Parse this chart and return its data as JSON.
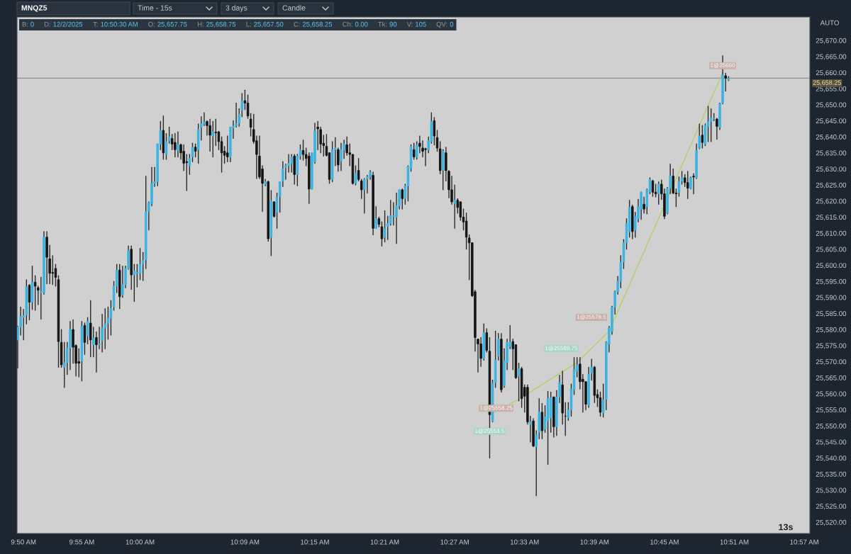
{
  "chart_data": {
    "type": "candlestick",
    "title": "MNQZ5",
    "x": [
      9.825,
      9.8292,
      9.8333,
      9.8375,
      9.8417,
      9.8458,
      9.85,
      9.8542,
      9.8583,
      9.8625,
      9.8667,
      9.8708,
      9.875,
      9.8792,
      9.8833,
      9.8875,
      9.8917,
      9.8958,
      9.9,
      9.9042,
      9.9083,
      9.9125,
      9.9167,
      9.9208,
      9.925,
      9.9292,
      9.9333,
      9.9375,
      9.9417,
      9.9458,
      9.95,
      9.9542,
      9.9583,
      9.9625,
      9.9667,
      9.9708,
      9.975,
      9.9792,
      9.9833,
      9.9875,
      9.9917,
      9.9958,
      10.0,
      10.0042,
      10.0083,
      10.0125,
      10.0167,
      10.0208,
      10.025,
      10.0292,
      10.0333,
      10.0375,
      10.0417,
      10.0458,
      10.05,
      10.0542,
      10.0583,
      10.0625,
      10.0667,
      10.0708,
      10.075,
      10.0792,
      10.0833,
      10.0875,
      10.0917,
      10.0958,
      10.1,
      10.1042,
      10.1083,
      10.1125,
      10.1167,
      10.1208,
      10.125,
      10.1292,
      10.1333,
      10.1375,
      10.1417,
      10.1458,
      10.15,
      10.1542,
      10.1583,
      10.1625,
      10.1667,
      10.1708,
      10.175,
      10.1792,
      10.1833,
      10.1875,
      10.1917,
      10.1958,
      10.2,
      10.2042,
      10.2083,
      10.2125,
      10.2167,
      10.2208,
      10.225,
      10.2292,
      10.2333,
      10.2375,
      10.2417,
      10.2458,
      10.25,
      10.2542,
      10.2583,
      10.2625,
      10.2667,
      10.2708,
      10.275,
      10.2792,
      10.2833,
      10.2875,
      10.2917,
      10.2958,
      10.3,
      10.3042,
      10.3083,
      10.3125,
      10.3167,
      10.3208,
      10.325,
      10.3292,
      10.3333,
      10.3375,
      10.3417,
      10.3458,
      10.35,
      10.3542,
      10.3583,
      10.3625,
      10.3667,
      10.3708,
      10.375,
      10.3792,
      10.3833,
      10.3875,
      10.3917,
      10.3958,
      10.4,
      10.4042,
      10.4083,
      10.4125,
      10.4167,
      10.4208,
      10.425,
      10.4292,
      10.4333,
      10.4375,
      10.4417,
      10.4458,
      10.45,
      10.4542,
      10.4583,
      10.4625,
      10.4667,
      10.4708,
      10.475,
      10.4792,
      10.4833,
      10.4875,
      10.4917,
      10.4958,
      10.5,
      10.5042,
      10.5083,
      10.5125,
      10.5167,
      10.5208,
      10.525,
      10.5292,
      10.5333,
      10.5375,
      10.5417,
      10.5458,
      10.55,
      10.5542,
      10.5583,
      10.5625,
      10.5667,
      10.5708,
      10.575,
      10.5792,
      10.5833,
      10.5875,
      10.5917,
      10.5958,
      10.6,
      10.6042,
      10.6083,
      10.6125,
      10.6167,
      10.6208,
      10.625,
      10.6292,
      10.6333,
      10.6375,
      10.6417,
      10.6458,
      10.65,
      10.6542,
      10.6583,
      10.6625,
      10.6667,
      10.6708,
      10.675,
      10.6792,
      10.6833,
      10.6875,
      10.6917,
      10.6958,
      10.7,
      10.7042,
      10.7083,
      10.7125,
      10.7167,
      10.7208,
      10.725,
      10.7292,
      10.7333,
      10.7375,
      10.7417,
      10.7458,
      10.75,
      10.7542,
      10.7583,
      10.7625,
      10.7667,
      10.7708,
      10.775,
      10.7792,
      10.7833,
      10.7875,
      10.7917,
      10.7958,
      10.8,
      10.8042,
      10.8083,
      10.8125,
      10.8167,
      10.8208,
      10.825,
      10.8292,
      10.8333,
      10.8375,
      10.8417
    ],
    "ohlc": [
      [
        25576.75,
        25581,
        25568,
        25580.75
      ],
      [
        25580.75,
        25587,
        25578.25,
        25584
      ],
      [
        25583.75,
        25586.25,
        25576.75,
        25584.25
      ],
      [
        25584.5,
        25595.5,
        25581.75,
        25593.25
      ],
      [
        25593.75,
        25594,
        25583,
        25588.5
      ],
      [
        25588.5,
        25599.75,
        25586.25,
        25594.75
      ],
      [
        25594.75,
        25596.75,
        25586,
        25593.5
      ],
      [
        25593,
        25593.5,
        25587.75,
        25592.25
      ],
      [
        25591.5,
        25596.25,
        25583.25,
        25591.75
      ],
      [
        25591.5,
        25610.5,
        25591,
        25608.75
      ],
      [
        25608.75,
        25610.5,
        25594.25,
        25602.5
      ],
      [
        25602,
        25606.25,
        25594.25,
        25597.5
      ],
      [
        25597.75,
        25603,
        25594,
        25597.5
      ],
      [
        25599,
        25600.25,
        25593.5,
        25596.25
      ],
      [
        25595.5,
        25596.75,
        25568.25,
        25576.25
      ],
      [
        25576,
        25580,
        25568.25,
        25569
      ],
      [
        25568.25,
        25576,
        25562,
        25569.75
      ],
      [
        25569.75,
        25576,
        25566,
        25574.25
      ],
      [
        25574.25,
        25582.5,
        25567.5,
        25580
      ],
      [
        25580,
        25583,
        25569.5,
        25574.5
      ],
      [
        25575,
        25575.25,
        25565.5,
        25569.5
      ],
      [
        25570,
        25574,
        25565.25,
        25569.5
      ],
      [
        25570.25,
        25582.5,
        25564,
        25581
      ],
      [
        25581.25,
        25582,
        25572.25,
        25576
      ],
      [
        25578,
        25583.75,
        25575.5,
        25582.5
      ],
      [
        25582,
        25589,
        25571.5,
        25576.75
      ],
      [
        25575.25,
        25580.75,
        25571.5,
        25577.25
      ],
      [
        25577.5,
        25579.25,
        25566.75,
        25575.25
      ],
      [
        25575.25,
        25580.75,
        25574,
        25575.5
      ],
      [
        25576.5,
        25584.75,
        25573,
        25580.5
      ],
      [
        25580.5,
        25586.5,
        25574,
        25581.75
      ],
      [
        25582,
        25587,
        25577,
        25583.5
      ],
      [
        25583.5,
        25589,
        25578.25,
        25586.5
      ],
      [
        25587,
        25595,
        25586,
        25593.5
      ],
      [
        25593.5,
        25600.25,
        25591.5,
        25598.5
      ],
      [
        25598.5,
        25600.25,
        25586.5,
        25590.25
      ],
      [
        25590.75,
        25599.75,
        25590,
        25594
      ],
      [
        25594,
        25599.75,
        25593,
        25599
      ],
      [
        25599,
        25606,
        25598.75,
        25604.5
      ],
      [
        25605,
        25606,
        25592.5,
        25597
      ],
      [
        25597,
        25600.25,
        25588.75,
        25598.25
      ],
      [
        25597.5,
        25600.25,
        25593.25,
        25597.75
      ],
      [
        25597.5,
        25605.25,
        25595.5,
        25600.25
      ],
      [
        25600.5,
        25604,
        25595.25,
        25601.5
      ],
      [
        25601.75,
        25627.75,
        25599,
        25616.75
      ],
      [
        25616.75,
        25619.75,
        25611,
        25619.5
      ],
      [
        25619.25,
        25630.5,
        25618.5,
        25625.5
      ],
      [
        25625.5,
        25630.5,
        25624.5,
        25626
      ],
      [
        25626,
        25637.75,
        25624.75,
        25637.75
      ],
      [
        25637.75,
        25644.75,
        25636,
        25642
      ],
      [
        25642,
        25646.5,
        25633,
        25635
      ],
      [
        25634.5,
        25641,
        25633,
        25638.5
      ],
      [
        25638.75,
        25643,
        25638,
        25640
      ],
      [
        25639.5,
        25640.75,
        25636,
        25637.75
      ],
      [
        25638.25,
        25641,
        25633.75,
        25636
      ],
      [
        25635.75,
        25641.5,
        25633.75,
        25637.5
      ],
      [
        25637.5,
        25637.75,
        25633,
        25635
      ],
      [
        25635.5,
        25637.5,
        25629.5,
        25631.75
      ],
      [
        25632.25,
        25634.5,
        25623.25,
        25632
      ],
      [
        25631,
        25634.5,
        25628.25,
        25633.25
      ],
      [
        25633.75,
        25638,
        25632.25,
        25636.75
      ],
      [
        25636.75,
        25637.75,
        25633.75,
        25635.5
      ],
      [
        25636,
        25644,
        25631.75,
        25642.25
      ],
      [
        25643,
        25646.25,
        25639,
        25644
      ],
      [
        25644,
        25647.5,
        25643.5,
        25644.5
      ],
      [
        25644.75,
        25645,
        25640.5,
        25643.5
      ],
      [
        25643.5,
        25645.5,
        25635.5,
        25640.5
      ],
      [
        25640.25,
        25644.75,
        25633.75,
        25641.5
      ],
      [
        25641.5,
        25645.5,
        25637.25,
        25641.25
      ],
      [
        25641.5,
        25641.75,
        25636,
        25638.5
      ],
      [
        25638.5,
        25640,
        25629,
        25635
      ],
      [
        25635.5,
        25637,
        25631.75,
        25634.25
      ],
      [
        25635,
        25640.25,
        25632.25,
        25633.75
      ],
      [
        25633.75,
        25643,
        25632.25,
        25643
      ],
      [
        25642.75,
        25645,
        25639.5,
        25643.25
      ],
      [
        25643.5,
        25650.5,
        25643,
        25644
      ],
      [
        25644.25,
        25648.75,
        25643.25,
        25647
      ],
      [
        25648.25,
        25653.5,
        25646.25,
        25651.25
      ],
      [
        25651.25,
        25654.5,
        25648.5,
        25650.5
      ],
      [
        25650.5,
        25653,
        25645.75,
        25646.5
      ],
      [
        25645.5,
        25647.25,
        25640.25,
        25643
      ],
      [
        25642.25,
        25647,
        25638,
        25638.5
      ],
      [
        25638.75,
        25640.25,
        25627,
        25634.5
      ],
      [
        25634,
        25640.25,
        25627,
        25627.5
      ],
      [
        25630,
        25631,
        25616.75,
        25625.5
      ],
      [
        25625.25,
        25626.75,
        25624.75,
        25626
      ],
      [
        25626,
        25626.25,
        25607.5,
        25608.25
      ],
      [
        25608.75,
        25623.25,
        25603,
        25620
      ],
      [
        25619.75,
        25619.75,
        25615,
        25615.25
      ],
      [
        25616.5,
        25622.5,
        25611.5,
        25621.25
      ],
      [
        25621.5,
        25626,
        25616.5,
        25626
      ],
      [
        25626.25,
        25632.25,
        25624.5,
        25630
      ],
      [
        25630.5,
        25631.5,
        25626.75,
        25631
      ],
      [
        25631,
        25634.5,
        25629,
        25631.75
      ],
      [
        25631.75,
        25634.5,
        25629,
        25633.75
      ],
      [
        25634,
        25634.5,
        25625.25,
        25628.25
      ],
      [
        25628.25,
        25634.5,
        25624.75,
        25634
      ],
      [
        25634,
        25637.5,
        25633,
        25636
      ],
      [
        25635.75,
        25639,
        25632.75,
        25634.5
      ],
      [
        25634.5,
        25636.5,
        25631,
        25633.25
      ],
      [
        25634,
        25635,
        25619.25,
        25623.75
      ],
      [
        25623.75,
        25635,
        25623.75,
        25635
      ],
      [
        25632.25,
        25644.25,
        25631.75,
        25641.75
      ],
      [
        25643,
        25644.75,
        25636,
        25642.5
      ],
      [
        25642.25,
        25643,
        25635,
        25637.75
      ],
      [
        25638,
        25640.5,
        25634,
        25637.25
      ],
      [
        25637,
        25640.75,
        25634,
        25634.25
      ],
      [
        25635,
        25635,
        25625.5,
        25626.75
      ],
      [
        25626.75,
        25638.5,
        25626,
        25636
      ],
      [
        25636,
        25639.75,
        25631,
        25636.5
      ],
      [
        25636,
        25636.5,
        25629.25,
        25631.25
      ],
      [
        25632.5,
        25638,
        25629.5,
        25636
      ],
      [
        25636,
        25639,
        25633.25,
        25637.75
      ],
      [
        25637.5,
        25640,
        25634.25,
        25635
      ],
      [
        25635,
        25637.75,
        25631,
        25634.5
      ],
      [
        25634.5,
        25634.5,
        25625.25,
        25625.5
      ],
      [
        25625.5,
        25631,
        25625,
        25628.75
      ],
      [
        25629.5,
        25633.25,
        25626.25,
        25626.75
      ],
      [
        25626.25,
        25626.75,
        25620.75,
        25623.5
      ],
      [
        25623.5,
        25627,
        25616.25,
        25626.75
      ],
      [
        25627,
        25628,
        25622.5,
        25627.5
      ],
      [
        25627.5,
        25629.5,
        25626.75,
        25629
      ],
      [
        25628,
        25629,
        25609.5,
        25611.5
      ],
      [
        25611.5,
        25618.25,
        25611.5,
        25614.5
      ],
      [
        25614.5,
        25615,
        25612,
        25612.75
      ],
      [
        25612,
        25613.5,
        25606,
        25608.25
      ],
      [
        25608.75,
        25617,
        25607.25,
        25611.5
      ],
      [
        25612,
        25615.25,
        25608,
        25613
      ],
      [
        25613,
        25620.25,
        25612.5,
        25615.5
      ],
      [
        25615.25,
        25619.5,
        25612.5,
        25615.5
      ],
      [
        25615,
        25622.5,
        25606.75,
        25618.5
      ],
      [
        25618.5,
        25623.5,
        25617.5,
        25623.5
      ],
      [
        25623.5,
        25623.75,
        25617.5,
        25620.75
      ],
      [
        25620.75,
        25625.25,
        25619,
        25624.75
      ],
      [
        25624.75,
        25631,
        25620,
        25630.75
      ],
      [
        25630.25,
        25637.5,
        25629.25,
        25637
      ],
      [
        25636,
        25638,
        25633,
        25633.75
      ],
      [
        25633.75,
        25638.5,
        25633,
        25637.5
      ],
      [
        25638,
        25640.25,
        25635,
        25637
      ],
      [
        25636.5,
        25638.75,
        25633.75,
        25635.5
      ],
      [
        25636.25,
        25636.5,
        25631,
        25636
      ],
      [
        25636,
        25640,
        25635,
        25638.75
      ],
      [
        25638.5,
        25647.5,
        25638,
        25644.75
      ],
      [
        25645,
        25646,
        25637.5,
        25640.25
      ],
      [
        25639.75,
        25642,
        25635.5,
        25636.5
      ],
      [
        25636.25,
        25638.5,
        25628.5,
        25629.5
      ],
      [
        25629.5,
        25636,
        25623.5,
        25635.5
      ],
      [
        25635,
        25636.75,
        25626.25,
        25629.5
      ],
      [
        25629.25,
        25629.5,
        25621,
        25623.5
      ],
      [
        25623.5,
        25627.75,
        25619,
        25619.75
      ],
      [
        25619.25,
        25625,
        25611.5,
        25620.25
      ],
      [
        25620.25,
        25620.75,
        25616.25,
        25618
      ],
      [
        25619.75,
        25619.75,
        25614,
        25615
      ],
      [
        25615,
        25617.5,
        25611,
        25613.5
      ],
      [
        25613.75,
        25616.25,
        25605,
        25608.75
      ],
      [
        25608.5,
        25609.5,
        25595.5,
        25607
      ],
      [
        25607,
        25607,
        25590.25,
        25590.5
      ],
      [
        25591.75,
        25592.25,
        25573.25,
        25577.5
      ],
      [
        25577,
        25577,
        25566.75,
        25575.5
      ],
      [
        25575.5,
        25577.5,
        25568.5,
        25571
      ],
      [
        25571,
        25581.75,
        25570.5,
        25579
      ],
      [
        25579,
        25580.25,
        25573,
        25573.5
      ],
      [
        25573.25,
        25577.5,
        25540,
        25553.5
      ],
      [
        25551.5,
        25564.25,
        25551.25,
        25563.25
      ],
      [
        25563.5,
        25579.5,
        25562,
        25570.5
      ],
      [
        25571.75,
        25578.75,
        25570.5,
        25577
      ],
      [
        25577,
        25578.75,
        25560.5,
        25561.25
      ],
      [
        25562.5,
        25574,
        25562,
        25570.25
      ],
      [
        25569.75,
        25577,
        25567.5,
        25576
      ],
      [
        25574.75,
        25581.25,
        25574,
        25576
      ],
      [
        25576.25,
        25577,
        25567.5,
        25574
      ],
      [
        25575.25,
        25575.25,
        25564.75,
        25565
      ],
      [
        25565.5,
        25569.5,
        25557.75,
        25567.75
      ],
      [
        25567.75,
        25568.25,
        25555.75,
        25558.5
      ],
      [
        25562,
        25562.75,
        25554.25,
        25559.25
      ],
      [
        25562,
        25562.75,
        25550.5,
        25551.25
      ],
      [
        25550.5,
        25553,
        25545,
        25551.25
      ],
      [
        25551.5,
        25552.25,
        25543.5,
        25543.75
      ],
      [
        25543.5,
        25548.5,
        25528.25,
        25547.25
      ],
      [
        25548,
        25558.5,
        25546,
        25554.25
      ],
      [
        25554.25,
        25557,
        25546,
        25548.5
      ],
      [
        25549,
        25556.25,
        25548,
        25552.75
      ],
      [
        25551.5,
        25560.75,
        25538,
        25558.5
      ],
      [
        25552.5,
        25560.5,
        25548,
        25558.75
      ],
      [
        25559,
        25559,
        25546.5,
        25549.75
      ],
      [
        25549.75,
        25561,
        25547,
        25559
      ],
      [
        25559,
        25565.75,
        25557.25,
        25563.5
      ],
      [
        25562.75,
        25567,
        25550.5,
        25554
      ],
      [
        25553,
        25557.25,
        25547,
        25553
      ],
      [
        25552.5,
        25557.25,
        25551.75,
        25555
      ],
      [
        25555,
        25563,
        25553,
        25561.5
      ],
      [
        25561.25,
        25571.25,
        25559.75,
        25567.5
      ],
      [
        25567,
        25571.25,
        25565.25,
        25569
      ],
      [
        25569.25,
        25571.25,
        25561.5,
        25563.75
      ],
      [
        25564.5,
        25566,
        25554.25,
        25563.75
      ],
      [
        25563.75,
        25563.75,
        25555,
        25556.75
      ],
      [
        25556.5,
        25568.25,
        25555.75,
        25566
      ],
      [
        25566.5,
        25570.75,
        25564.25,
        25568.25
      ],
      [
        25568.25,
        25568.5,
        25557.25,
        25559.5
      ],
      [
        25559.75,
        25561.25,
        25556,
        25558.75
      ],
      [
        25558.75,
        25560.5,
        25553,
        25554.25
      ],
      [
        25554,
        25563,
        25552.75,
        25558
      ],
      [
        25558.25,
        25576.25,
        25555,
        25576
      ],
      [
        25575.5,
        25581,
        25573,
        25580.5
      ],
      [
        25579.5,
        25587.25,
        25578.5,
        25587
      ],
      [
        25587,
        25592,
        25584.75,
        25591.75
      ],
      [
        25591.75,
        25596.5,
        25591,
        25595
      ],
      [
        25595,
        25603,
        25593,
        25601
      ],
      [
        25601,
        25608,
        25599,
        25607
      ],
      [
        25607,
        25614.5,
        25605,
        25613
      ],
      [
        25610.5,
        25620.25,
        25608.75,
        25618
      ],
      [
        25618.25,
        25618.75,
        25608.25,
        25610.5
      ],
      [
        25611,
        25616.5,
        25608.75,
        25615.25
      ],
      [
        25614.5,
        25620.5,
        25613.5,
        25618.25
      ],
      [
        25617.5,
        25622.75,
        25614.25,
        25622.75
      ],
      [
        25619,
        25621.25,
        25616.25,
        25617.5
      ],
      [
        25618.25,
        25623.75,
        25616,
        25623.5
      ],
      [
        25623,
        25627.25,
        25622.25,
        25626.75
      ],
      [
        25626.25,
        25626.5,
        25621.5,
        25622.75
      ],
      [
        25622.75,
        25625.25,
        25621.25,
        25622.25
      ],
      [
        25622.25,
        25626,
        25619,
        25625.25
      ],
      [
        25625.25,
        25626.5,
        25620.5,
        25622.25
      ],
      [
        25622.25,
        25623.75,
        25614.5,
        25615.25
      ],
      [
        25616.25,
        25624.25,
        25616,
        25624
      ],
      [
        25624,
        25631.5,
        25622.25,
        25627.75
      ],
      [
        25627.75,
        25630,
        25622.25,
        25622.5
      ],
      [
        25622.5,
        25623.75,
        25618.25,
        25622.25
      ],
      [
        25622.75,
        25627.5,
        25621.5,
        25626
      ],
      [
        25626.25,
        25629.25,
        25625.25,
        25627.25
      ],
      [
        25627.25,
        25628.25,
        25624.5,
        25625.75
      ],
      [
        25625.75,
        25629.25,
        25620.75,
        25624
      ],
      [
        25624,
        25627.5,
        25623.75,
        25627.25
      ],
      [
        25627.75,
        25628.5,
        25622.25,
        25627.5
      ],
      [
        25627.25,
        25637.75,
        25627,
        25635.75
      ],
      [
        25636.5,
        25644,
        25636.25,
        25640.25
      ],
      [
        25640.5,
        25643.5,
        25636.5,
        25638.25
      ],
      [
        25637.75,
        25644,
        25637.25,
        25643.5
      ],
      [
        25643.25,
        25649.5,
        25638.5,
        25644.75
      ],
      [
        25644.75,
        25648.75,
        25638.5,
        25645.75
      ],
      [
        25645.75,
        25647.25,
        25645,
        25645.75
      ],
      [
        25645.5,
        25645.75,
        25639.25,
        25643.25
      ],
      [
        25643,
        25650.5,
        25642.25,
        25650.25
      ],
      [
        25650.5,
        25665.25,
        25650.25,
        25659.25
      ],
      [
        25659,
        25659.75,
        25654.25,
        25658.25
      ],
      [
        25657.75,
        25658.75,
        25657.5,
        25658.25
      ]
    ],
    "colors": [
      "#3ab4e2",
      "#3ab4e2",
      "#3ab4e2",
      "#3ab4e2",
      "#151515",
      "#3ab4e2",
      "#151515",
      "#151515",
      "#3ab4e2",
      "#3ab4e2",
      "#151515",
      "#151515",
      "#151515",
      "#151515",
      "#151515",
      "#151515",
      "#3ab4e2",
      "#3ab4e2",
      "#3ab4e2",
      "#151515",
      "#151515",
      "#151515",
      "#3ab4e2",
      "#151515",
      "#3ab4e2",
      "#151515",
      "#3ab4e2",
      "#151515",
      "#3ab4e2",
      "#3ab4e2",
      "#3ab4e2",
      "#3ab4e2",
      "#3ab4e2",
      "#3ab4e2",
      "#3ab4e2",
      "#151515",
      "#3ab4e2",
      "#3ab4e2",
      "#3ab4e2",
      "#151515",
      "#3ab4e2",
      "#3ab4e2",
      "#3ab4e2",
      "#3ab4e2",
      "#3ab4e2",
      "#3ab4e2",
      "#3ab4e2",
      "#3ab4e2",
      "#3ab4e2",
      "#3ab4e2",
      "#151515",
      "#3ab4e2",
      "#3ab4e2",
      "#151515",
      "#151515",
      "#3ab4e2",
      "#151515",
      "#151515",
      "#151515",
      "#3ab4e2",
      "#3ab4e2",
      "#151515",
      "#3ab4e2",
      "#3ab4e2",
      "#3ab4e2",
      "#151515",
      "#151515",
      "#3ab4e2",
      "#151515",
      "#151515",
      "#151515",
      "#151515",
      "#151515",
      "#3ab4e2",
      "#3ab4e2",
      "#3ab4e2",
      "#3ab4e2",
      "#3ab4e2",
      "#151515",
      "#151515",
      "#151515",
      "#151515",
      "#151515",
      "#151515",
      "#151515",
      "#3ab4e2",
      "#151515",
      "#3ab4e2",
      "#151515",
      "#3ab4e2",
      "#3ab4e2",
      "#3ab4e2",
      "#3ab4e2",
      "#3ab4e2",
      "#3ab4e2",
      "#151515",
      "#3ab4e2",
      "#3ab4e2",
      "#151515",
      "#151515",
      "#151515",
      "#3ab4e2",
      "#3ab4e2",
      "#151515",
      "#151515",
      "#151515",
      "#151515",
      "#151515",
      "#3ab4e2",
      "#3ab4e2",
      "#151515",
      "#3ab4e2",
      "#3ab4e2",
      "#151515",
      "#151515",
      "#151515",
      "#3ab4e2",
      "#151515",
      "#151515",
      "#3ab4e2",
      "#3ab4e2",
      "#3ab4e2",
      "#151515",
      "#3ab4e2",
      "#151515",
      "#151515",
      "#3ab4e2",
      "#3ab4e2",
      "#3ab4e2",
      "#3ab4e2",
      "#3ab4e2",
      "#3ab4e2",
      "#151515",
      "#3ab4e2",
      "#3ab4e2",
      "#3ab4e2",
      "#151515",
      "#3ab4e2",
      "#151515",
      "#151515",
      "#151515",
      "#3ab4e2",
      "#3ab4e2",
      "#151515",
      "#151515",
      "#151515",
      "#3ab4e2",
      "#151515",
      "#151515",
      "#151515",
      "#3ab4e2",
      "#151515",
      "#151515",
      "#151515",
      "#151515",
      "#151515",
      "#151515",
      "#151515",
      "#151515",
      "#151515",
      "#3ab4e2",
      "#151515",
      "#151515",
      "#3ab4e2",
      "#3ab4e2",
      "#3ab4e2",
      "#151515",
      "#3ab4e2",
      "#3ab4e2",
      "#3ab4e2",
      "#151515",
      "#151515",
      "#3ab4e2",
      "#151515",
      "#151515",
      "#151515",
      "#3ab4e2",
      "#151515",
      "#3ab4e2",
      "#3ab4e2",
      "#151515",
      "#3ab4e2",
      "#3ab4e2",
      "#3ab4e2",
      "#151515",
      "#3ab4e2",
      "#3ab4e2",
      "#151515",
      "#151515",
      "#3ab4e2",
      "#3ab4e2",
      "#3ab4e2",
      "#3ab4e2",
      "#151515",
      "#151515",
      "#151515",
      "#3ab4e2",
      "#3ab4e2",
      "#151515",
      "#151515",
      "#151515",
      "#3ab4e2",
      "#3ab4e2",
      "#3ab4e2",
      "#3ab4e2",
      "#3ab4e2",
      "#3ab4e2",
      "#3ab4e2",
      "#3ab4e2",
      "#3ab4e2",
      "#3ab4e2",
      "#151515",
      "#3ab4e2",
      "#3ab4e2",
      "#3ab4e2",
      "#151515",
      "#3ab4e2",
      "#3ab4e2",
      "#151515",
      "#151515",
      "#3ab4e2",
      "#151515",
      "#151515",
      "#3ab4e2",
      "#3ab4e2",
      "#151515",
      "#151515",
      "#3ab4e2",
      "#3ab4e2",
      "#151515",
      "#151515",
      "#3ab4e2",
      "#151515",
      "#3ab4e2",
      "#3ab4e2",
      "#151515",
      "#3ab4e2",
      "#3ab4e2",
      "#3ab4e2",
      "#3ab4e2",
      "#151515",
      "#3ab4e2",
      "#3ab4e2",
      "#151515",
      "#3ab4e2"
    ],
    "series": [
      {
        "type": "line",
        "color": "#b3cf6a",
        "x": [
          10.5,
          10.5417,
          10.625,
          10.6708,
          10.8333
        ],
        "values": [
          25553.5,
          25558.25,
          25569.75,
          25579.5,
          25660
        ],
        "value_labels": [
          "1@25553.5",
          "1@25558.25",
          "1@25569.75",
          "1@25579.5",
          "1@25660"
        ],
        "colors": [
          "#a8d5c6",
          "#c8b0ab",
          "#a8d5c6",
          "#c8b0ab",
          "#c8b0ab"
        ]
      }
    ],
    "ref_lines": [
      {
        "axis": "y",
        "value": 25658.25,
        "label": "25,658.25",
        "color": "#8c8c8c"
      }
    ],
    "xlim": [
      9.824,
      10.958
    ],
    "xticks": [
      {
        "value": 9.8333,
        "label": "9:50 AM"
      },
      {
        "value": 9.9167,
        "label": "9:55 AM"
      },
      {
        "value": 10.0,
        "label": "10:00 AM"
      },
      {
        "value": 10.15,
        "label": "10:09 AM"
      },
      {
        "value": 10.25,
        "label": "10:15 AM"
      },
      {
        "value": 10.35,
        "label": "10:21 AM"
      },
      {
        "value": 10.45,
        "label": "10:27 AM"
      },
      {
        "value": 10.55,
        "label": "10:33 AM"
      },
      {
        "value": 10.65,
        "label": "10:39 AM"
      },
      {
        "value": 10.75,
        "label": "10:45 AM"
      },
      {
        "value": 10.85,
        "label": "10:51 AM"
      },
      {
        "value": 10.95,
        "label": "10:57 AM"
      }
    ],
    "ylim": [
      25516.5,
      25677.3
    ],
    "yticks": [
      {
        "value": 25520,
        "label": "25,520.00"
      },
      {
        "value": 25525,
        "label": "25,525.00"
      },
      {
        "value": 25530,
        "label": "25,530.00"
      },
      {
        "value": 25535,
        "label": "25,535.00"
      },
      {
        "value": 25540,
        "label": "25,540.00"
      },
      {
        "value": 25545,
        "label": "25,545.00"
      },
      {
        "value": 25550,
        "label": "25,550.00"
      },
      {
        "value": 25555,
        "label": "25,555.00"
      },
      {
        "value": 25560,
        "label": "25,560.00"
      },
      {
        "value": 25565,
        "label": "25,565.00"
      },
      {
        "value": 25570,
        "label": "25,570.00"
      },
      {
        "value": 25575,
        "label": "25,575.00"
      },
      {
        "value": 25580,
        "label": "25,580.00"
      },
      {
        "value": 25585,
        "label": "25,585.00"
      },
      {
        "value": 25590,
        "label": "25,590.00"
      },
      {
        "value": 25595,
        "label": "25,595.00"
      },
      {
        "value": 25600,
        "label": "25,600.00"
      },
      {
        "value": 25605,
        "label": "25,605.00"
      },
      {
        "value": 25610,
        "label": "25,610.00"
      },
      {
        "value": 25615,
        "label": "25,615.00"
      },
      {
        "value": 25620,
        "label": "25,620.00"
      },
      {
        "value": 25625,
        "label": "25,625.00"
      },
      {
        "value": 25630,
        "label": "25,630.00"
      },
      {
        "value": 25635,
        "label": "25,635.00"
      },
      {
        "value": 25640,
        "label": "25,640.00"
      },
      {
        "value": 25645,
        "label": "25,645.00"
      },
      {
        "value": 25650,
        "label": "25,650.00"
      },
      {
        "value": 25655,
        "label": "25,655.00"
      },
      {
        "value": 25660,
        "label": "25,660.00"
      },
      {
        "value": 25665,
        "label": "25,665.00"
      },
      {
        "value": 25670,
        "label": "25,670.00"
      }
    ],
    "annotations": [
      "Time - 15s",
      "3 days",
      "Candle",
      "B: 0",
      "D: 12/2/2025",
      "T: 10:50:30 AM",
      "O: 25,657.75",
      "H: 25,658.75",
      "L: 25,657.50",
      "C: 25,658.25",
      "Ch: 0.00",
      "Tk: 90",
      "V: 105",
      "QV: 0",
      "AUTO",
      "13s"
    ]
  }
}
